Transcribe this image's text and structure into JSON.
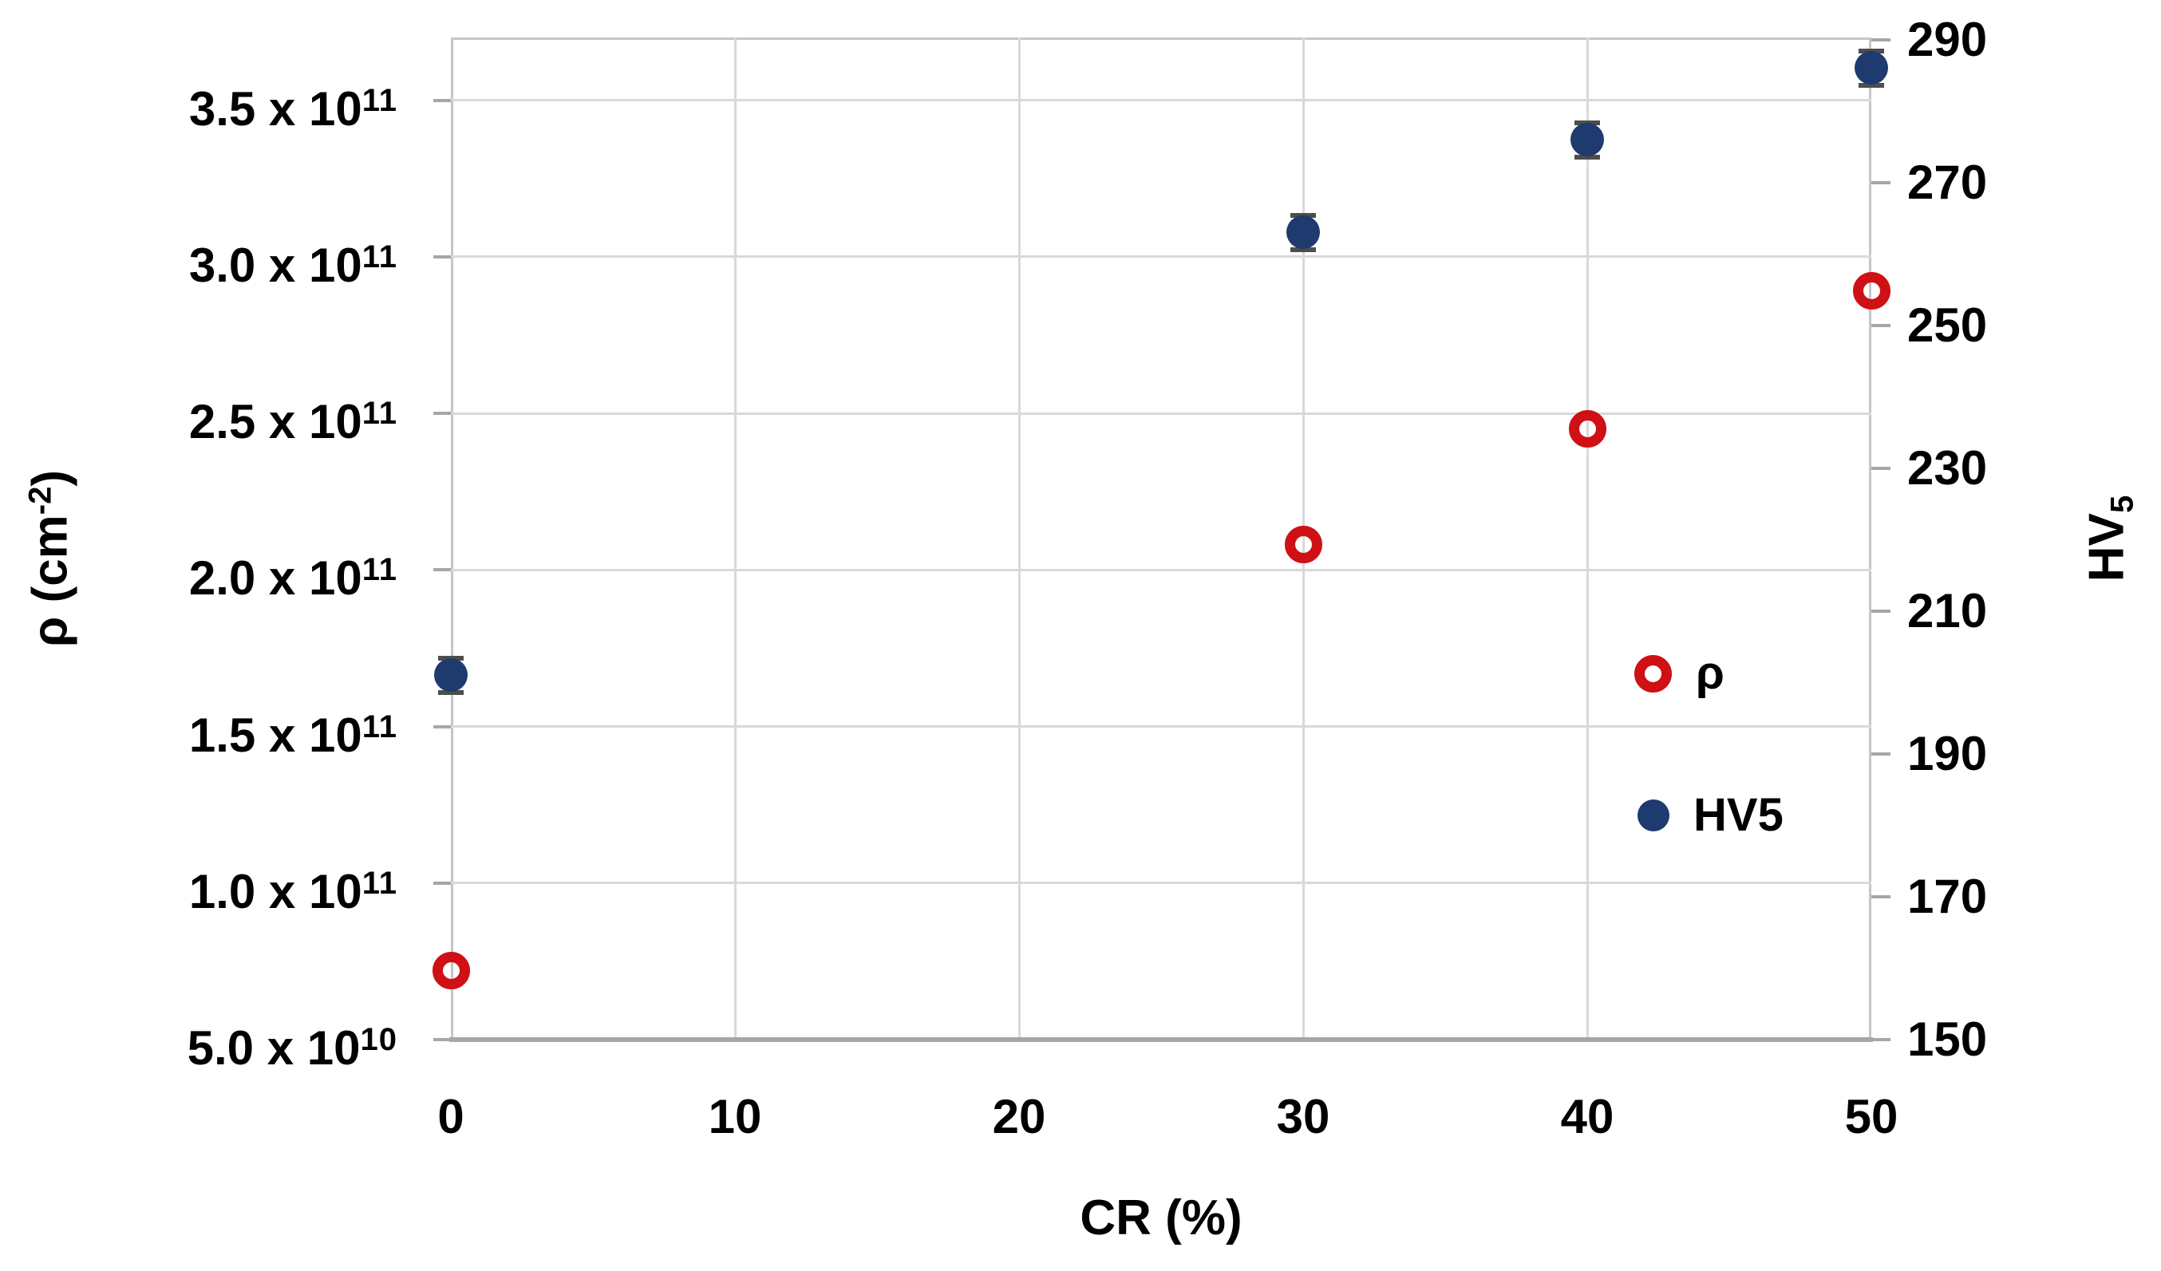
{
  "chart_data": {
    "type": "scatter",
    "title": "",
    "x_axis": {
      "title": "CR (%)",
      "min": 0,
      "max": 50,
      "ticks": [
        0,
        10,
        20,
        30,
        40,
        50
      ],
      "gridlines": [
        10,
        20,
        30,
        40
      ]
    },
    "y_left_axis": {
      "title_main": "ρ (cm",
      "title_sup": "-2",
      "title_close": ")",
      "min": 50000000000.0,
      "max": 370000000000.0,
      "ticks": [
        {
          "value": 350000000000.0,
          "mantissa": "3.5 x 10",
          "exponent": "11"
        },
        {
          "value": 300000000000.0,
          "mantissa": "3.0 x 10",
          "exponent": "11"
        },
        {
          "value": 250000000000.0,
          "mantissa": "2.5 x 10",
          "exponent": "11"
        },
        {
          "value": 200000000000.0,
          "mantissa": "2.0 x 10",
          "exponent": "11"
        },
        {
          "value": 150000000000.0,
          "mantissa": "1.5 x 10",
          "exponent": "11"
        },
        {
          "value": 100000000000.0,
          "mantissa": "1.0 x 10",
          "exponent": "11"
        },
        {
          "value": 50000000000.0,
          "mantissa": "5.0 x 10",
          "exponent": "10"
        }
      ],
      "gridline_values": [
        350000000000.0,
        300000000000.0,
        250000000000.0,
        200000000000.0,
        150000000000.0,
        100000000000.0
      ]
    },
    "y_right_axis": {
      "title_main": "HV",
      "title_sub": "5",
      "min": 150,
      "max": 290.3,
      "ticks": [
        290,
        270,
        250,
        230,
        210,
        190,
        170,
        150
      ]
    },
    "colors": {
      "rho": "#cf1014",
      "hv5": "#1e3a6e",
      "gridline": "#d9d9d9",
      "axis_line": "#a6a6a6",
      "error_bar": "#4d4d4d"
    },
    "series": [
      {
        "name": "rho",
        "legend_label": "ρ",
        "axis": "left",
        "marker": "open-circle",
        "color": "#cf1014",
        "points": [
          {
            "x": 0,
            "y": 72000000000.0
          },
          {
            "x": 30,
            "y": 208000000000.0
          },
          {
            "x": 40,
            "y": 245000000000.0
          },
          {
            "x": 50,
            "y": 289000000000.0
          }
        ]
      },
      {
        "name": "hv5",
        "legend_label": "HV5",
        "axis": "right",
        "marker": "filled-circle",
        "color": "#1e3a6e",
        "error_y": 2.4,
        "points": [
          {
            "x": 0,
            "y": 201
          },
          {
            "x": 30,
            "y": 263
          },
          {
            "x": 40,
            "y": 276
          },
          {
            "x": 50,
            "y": 286
          }
        ]
      }
    ]
  }
}
